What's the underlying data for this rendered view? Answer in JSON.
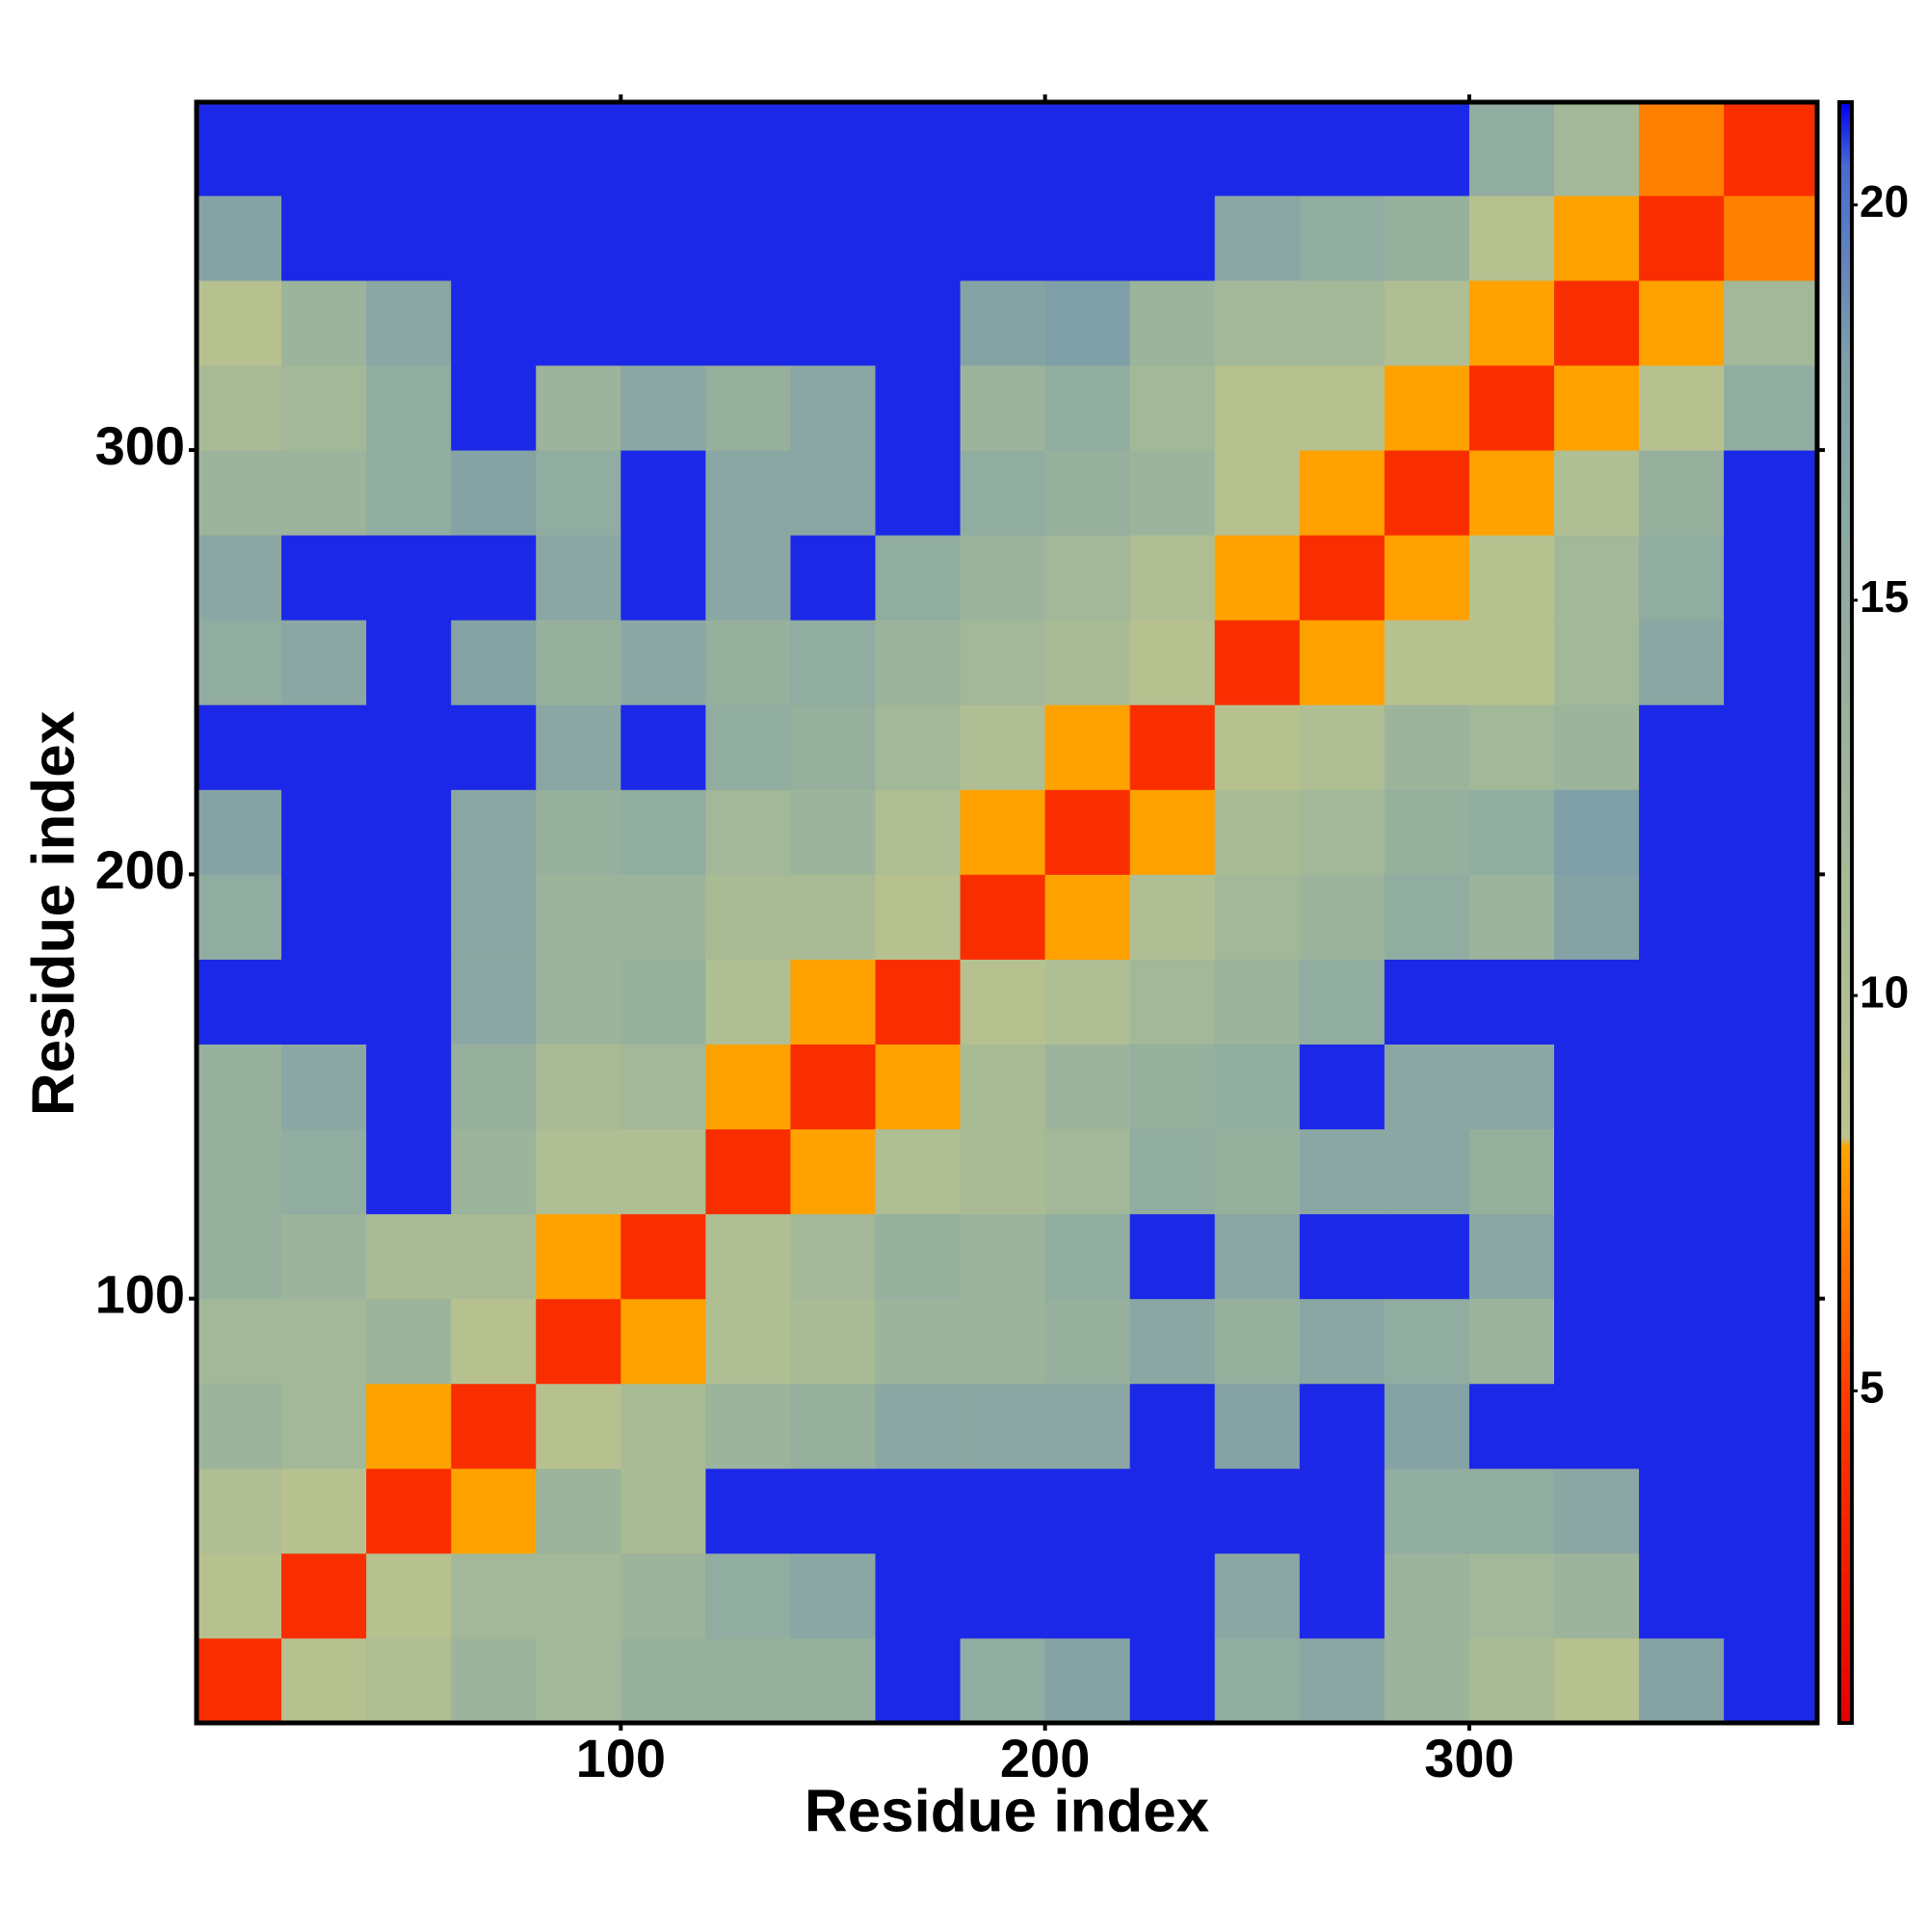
{
  "chart_data": {
    "type": "heatmap",
    "xlabel": "Residue index",
    "ylabel": "Residue index",
    "xlim": [
      0,
      382
    ],
    "ylim": [
      0,
      382
    ],
    "xticks": [
      100,
      200,
      300
    ],
    "yticks": [
      100,
      200,
      300
    ],
    "xbins": [
      0,
      20,
      40,
      60,
      80,
      100,
      120,
      140,
      160,
      180,
      200,
      220,
      240,
      260,
      280,
      300,
      320,
      340,
      360,
      382
    ],
    "ybins": [
      0,
      20,
      40,
      60,
      80,
      100,
      120,
      140,
      160,
      180,
      200,
      220,
      240,
      260,
      280,
      300,
      320,
      340,
      360,
      382
    ],
    "z": [
      [
        4,
        9,
        10,
        13,
        12,
        14,
        14,
        14,
        21,
        15,
        17,
        21,
        15,
        16,
        13,
        11,
        9,
        17,
        21
      ],
      [
        9,
        4,
        9,
        12,
        12,
        13,
        15,
        16,
        21,
        21,
        21,
        21,
        16,
        21,
        13,
        12,
        13,
        21,
        21
      ],
      [
        10,
        9,
        4,
        8,
        13,
        11,
        21,
        21,
        21,
        21,
        21,
        21,
        21,
        21,
        15,
        15,
        16,
        21,
        21
      ],
      [
        13,
        12,
        8,
        4,
        9,
        11,
        13,
        14,
        16,
        16,
        16,
        21,
        17,
        21,
        17,
        21,
        21,
        21,
        21
      ],
      [
        12,
        12,
        13,
        9,
        4,
        8,
        10,
        11,
        13,
        13,
        14,
        16,
        14,
        16,
        15,
        13,
        21,
        21,
        21
      ],
      [
        14,
        13,
        11,
        11,
        8,
        4,
        10,
        12,
        14,
        13,
        15,
        21,
        16,
        21,
        21,
        16,
        21,
        21,
        21
      ],
      [
        14,
        15,
        21,
        13,
        10,
        10,
        4,
        8,
        10,
        11,
        12,
        15,
        14,
        16,
        16,
        14,
        21,
        21,
        21
      ],
      [
        14,
        16,
        21,
        14,
        11,
        12,
        8,
        4,
        8,
        11,
        13,
        14,
        15,
        21,
        16,
        16,
        21,
        21,
        21
      ],
      [
        21,
        21,
        21,
        16,
        13,
        14,
        10,
        8,
        4,
        9,
        10,
        12,
        13,
        15,
        21,
        21,
        21,
        21,
        21
      ],
      [
        15,
        21,
        21,
        16,
        13,
        13,
        11,
        11,
        9,
        4,
        8,
        10,
        12,
        13,
        15,
        13,
        17,
        21,
        21
      ],
      [
        17,
        21,
        21,
        16,
        14,
        15,
        12,
        13,
        10,
        8,
        4,
        8,
        11,
        12,
        14,
        15,
        18,
        21,
        21
      ],
      [
        21,
        21,
        21,
        21,
        16,
        21,
        15,
        14,
        12,
        10,
        8,
        4,
        9,
        10,
        13,
        12,
        13,
        21,
        21
      ],
      [
        15,
        16,
        21,
        17,
        14,
        16,
        14,
        15,
        13,
        12,
        11,
        9,
        4,
        8,
        9,
        9,
        12,
        16,
        21
      ],
      [
        16,
        21,
        21,
        21,
        16,
        21,
        16,
        21,
        15,
        13,
        12,
        10,
        8,
        4,
        8,
        9,
        12,
        15,
        21
      ],
      [
        13,
        13,
        15,
        17,
        15,
        21,
        16,
        16,
        21,
        15,
        14,
        13,
        9,
        8,
        4,
        8,
        10,
        14,
        21
      ],
      [
        11,
        12,
        15,
        21,
        13,
        16,
        14,
        16,
        21,
        13,
        15,
        12,
        9,
        9,
        8,
        4,
        8,
        9,
        15
      ],
      [
        9,
        13,
        16,
        21,
        21,
        21,
        21,
        21,
        21,
        17,
        18,
        13,
        12,
        12,
        10,
        8,
        4,
        8,
        12
      ],
      [
        17,
        21,
        21,
        21,
        21,
        21,
        21,
        21,
        21,
        21,
        21,
        21,
        16,
        15,
        14,
        9,
        8,
        4,
        7
      ],
      [
        21,
        21,
        21,
        21,
        21,
        21,
        21,
        21,
        21,
        21,
        21,
        21,
        21,
        21,
        21,
        15,
        12,
        7,
        4
      ]
    ],
    "zlim": [
      0.8,
      21.3
    ],
    "zticks": [
      5,
      10,
      15,
      20
    ],
    "colorscale": [
      {
        "value": 0.8,
        "color": "#e60000"
      },
      {
        "value": 5,
        "color": "#ff3c00"
      },
      {
        "value": 8.1,
        "color": "#ffa500"
      },
      {
        "value": 8.2,
        "color": "#bcc48e"
      },
      {
        "value": 12,
        "color": "#a2b898"
      },
      {
        "value": 18,
        "color": "#7f9fa8"
      },
      {
        "value": 20.5,
        "color": "#4a6bd0"
      },
      {
        "value": 21.3,
        "color": "#0000f5"
      }
    ]
  }
}
